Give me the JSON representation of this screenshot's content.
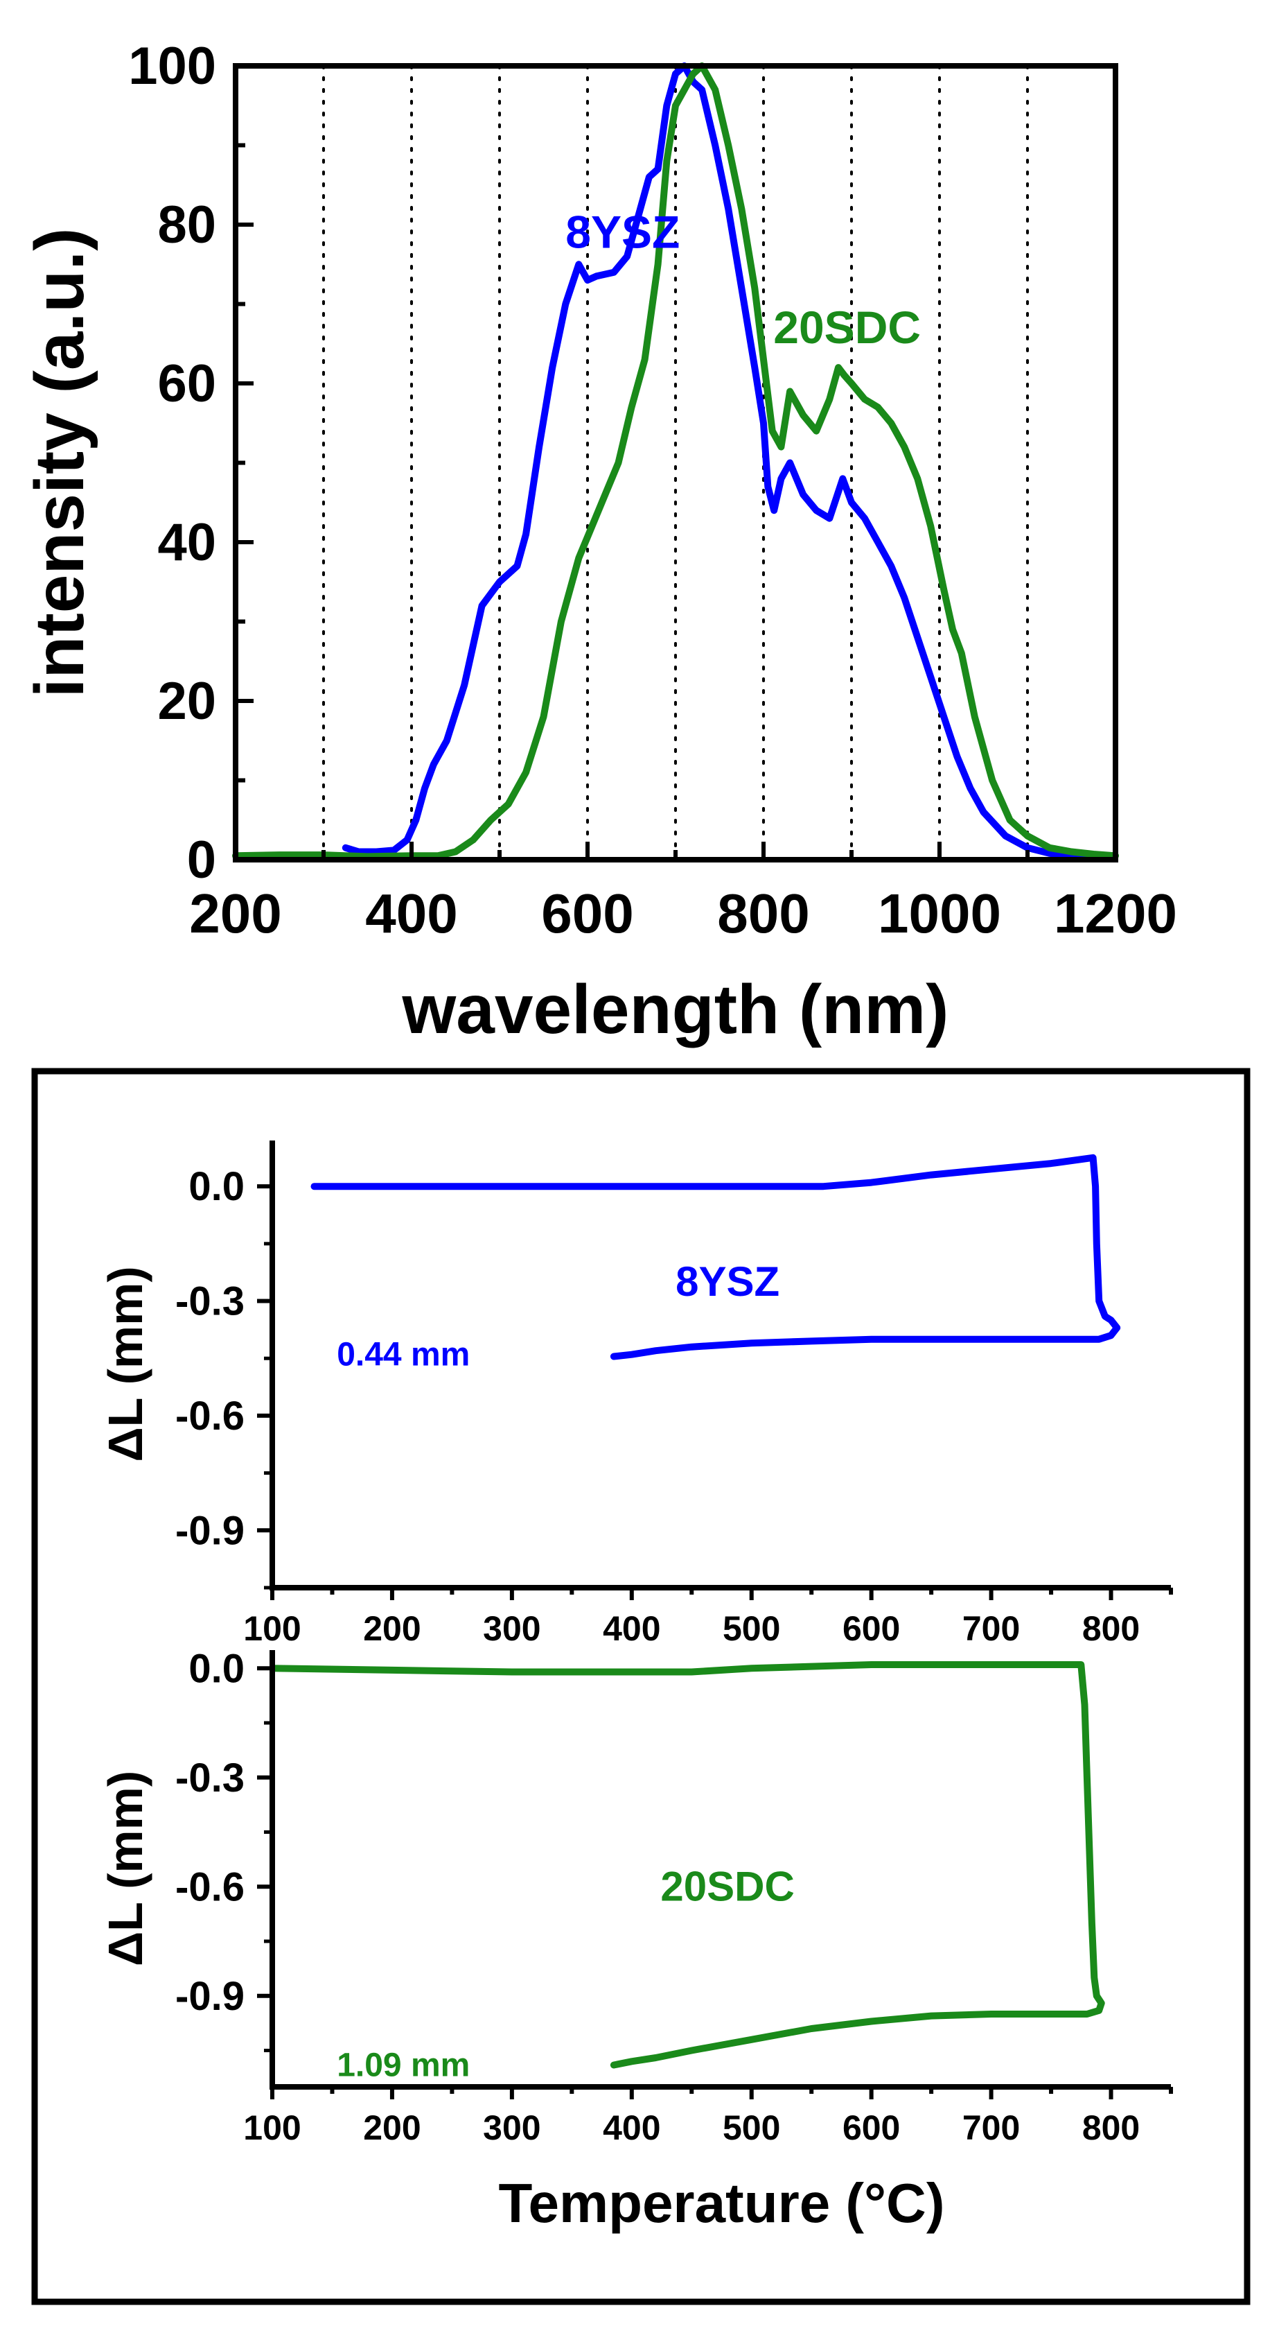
{
  "chart_data": [
    {
      "type": "line",
      "title": "",
      "xlabel": "wavelength (nm)",
      "ylabel": "intensity (a.u.)",
      "xlim": [
        200,
        1200
      ],
      "ylim": [
        0,
        100
      ],
      "xticks": [
        200,
        400,
        600,
        800,
        1000,
        1200
      ],
      "yticks": [
        0,
        20,
        40,
        60,
        80,
        100
      ],
      "vertical_dotted_gridlines": [
        300,
        400,
        500,
        600,
        700,
        800,
        900,
        1000,
        1100
      ],
      "series": [
        {
          "name": "8YSZ",
          "color": "#0000ff",
          "x": [
            325,
            340,
            360,
            380,
            395,
            405,
            415,
            425,
            440,
            460,
            480,
            500,
            520,
            530,
            545,
            560,
            575,
            590,
            600,
            610,
            630,
            645,
            660,
            670,
            680,
            690,
            700,
            710,
            720,
            730,
            745,
            760,
            775,
            790,
            800,
            805,
            812,
            820,
            830,
            845,
            860,
            875,
            890,
            900,
            915,
            930,
            945,
            960,
            975,
            990,
            1005,
            1020,
            1035,
            1050,
            1075,
            1100,
            1125,
            1150,
            1175
          ],
          "y": [
            1.5,
            1.0,
            1.0,
            1.2,
            2.5,
            5.0,
            9.0,
            12.0,
            15.0,
            22.0,
            32.0,
            35.0,
            37.0,
            41.0,
            52.0,
            62.0,
            70.0,
            75.0,
            73.0,
            73.5,
            74.0,
            76.0,
            82.0,
            86.0,
            87.0,
            95.0,
            99.0,
            100.0,
            98.0,
            97.0,
            90.0,
            82.0,
            72.0,
            62.0,
            55.0,
            47.0,
            44.0,
            48.0,
            50.0,
            46.0,
            44.0,
            43.0,
            48.0,
            45.0,
            43.0,
            40.0,
            37.0,
            33.0,
            28.0,
            23.0,
            18.0,
            13.0,
            9.0,
            6.0,
            3.0,
            1.5,
            0.8,
            0.5,
            0.5
          ]
        },
        {
          "name": "20SDC",
          "color": "#1a8a1a",
          "x": [
            200,
            250,
            300,
            350,
            400,
            430,
            450,
            470,
            490,
            510,
            530,
            550,
            570,
            590,
            605,
            620,
            635,
            650,
            665,
            680,
            690,
            700,
            710,
            720,
            730,
            745,
            760,
            775,
            790,
            800,
            810,
            820,
            830,
            845,
            860,
            875,
            885,
            892,
            900,
            915,
            930,
            945,
            960,
            975,
            990,
            1005,
            1015,
            1025,
            1040,
            1060,
            1080,
            1100,
            1125,
            1150,
            1175,
            1200
          ],
          "y": [
            0.5,
            0.6,
            0.6,
            0.4,
            0.5,
            0.5,
            1.0,
            2.5,
            5.0,
            7.0,
            11.0,
            18.0,
            30.0,
            38.0,
            42.0,
            46.0,
            50.0,
            57.0,
            63.0,
            75.0,
            88.0,
            95.0,
            97.0,
            99.0,
            100.0,
            97.0,
            90.0,
            82.0,
            72.0,
            63.0,
            54.0,
            52.0,
            59.0,
            56.0,
            54.0,
            58.0,
            62.0,
            61.0,
            60.0,
            58.0,
            57.0,
            55.0,
            52.0,
            48.0,
            42.0,
            34.0,
            29.0,
            26.0,
            18.0,
            10.0,
            5.0,
            3.0,
            1.5,
            1.0,
            0.7,
            0.5
          ]
        }
      ],
      "annotations": [
        {
          "text": "8YSZ",
          "x": 640,
          "y": 79,
          "color": "#0000ff"
        },
        {
          "text": "20SDC",
          "x": 895,
          "y": 67,
          "color": "#1a8a1a"
        }
      ]
    },
    {
      "type": "line",
      "title": "",
      "xlabel": "",
      "ylabel": "ΔL (mm)",
      "xlim": [
        100,
        850
      ],
      "ylim": [
        -1.05,
        0.12
      ],
      "xticks": [
        100,
        200,
        300,
        400,
        500,
        600,
        700,
        800
      ],
      "yticks": [
        0.0,
        -0.3,
        -0.6,
        -0.9
      ],
      "ytick_labels": [
        "0.0",
        "-0.3",
        "-0.6",
        "-0.9"
      ],
      "series": [
        {
          "name": "8YSZ",
          "color": "#0000ff",
          "x": [
            135,
            300,
            450,
            560,
            600,
            650,
            700,
            750,
            785,
            787,
            788,
            790,
            795,
            800,
            805,
            800,
            790,
            770,
            740,
            700,
            650,
            600,
            550,
            500,
            450,
            420,
            400,
            385
          ],
          "y": [
            0.0,
            0.0,
            0.0,
            0.0,
            0.01,
            0.03,
            0.045,
            0.06,
            0.075,
            0.0,
            -0.15,
            -0.3,
            -0.34,
            -0.35,
            -0.37,
            -0.39,
            -0.4,
            -0.4,
            -0.4,
            -0.4,
            -0.4,
            -0.4,
            -0.405,
            -0.41,
            -0.42,
            -0.43,
            -0.44,
            -0.445
          ]
        }
      ],
      "annotations": [
        {
          "text": "8YSZ",
          "x": 480,
          "y": -0.25,
          "color": "#0000ff"
        },
        {
          "text": "0.44 mm",
          "x": 265,
          "y": -0.44,
          "color": "#0000ff"
        }
      ]
    },
    {
      "type": "line",
      "title": "",
      "xlabel": "Temperature (°C)",
      "ylabel": "ΔL (mm)",
      "xlim": [
        100,
        850
      ],
      "ylim": [
        -1.15,
        0.05
      ],
      "xticks": [
        100,
        200,
        300,
        400,
        500,
        600,
        700,
        800
      ],
      "yticks": [
        0.0,
        -0.3,
        -0.6,
        -0.9
      ],
      "ytick_labels": [
        "0.0",
        "-0.3",
        "-0.6",
        "-0.9"
      ],
      "series": [
        {
          "name": "20SDC",
          "color": "#1a8a1a",
          "x": [
            100,
            200,
            300,
            400,
            450,
            500,
            550,
            600,
            650,
            700,
            750,
            775,
            778,
            780,
            782,
            784,
            786,
            788,
            792,
            790,
            780,
            760,
            730,
            700,
            650,
            600,
            550,
            500,
            450,
            420,
            400,
            385
          ],
          "y": [
            0.0,
            -0.005,
            -0.01,
            -0.01,
            -0.01,
            0.0,
            0.005,
            0.01,
            0.01,
            0.01,
            0.01,
            0.01,
            -0.1,
            -0.3,
            -0.5,
            -0.7,
            -0.85,
            -0.9,
            -0.92,
            -0.94,
            -0.95,
            -0.95,
            -0.95,
            -0.95,
            -0.955,
            -0.97,
            -0.99,
            -1.02,
            -1.05,
            -1.07,
            -1.08,
            -1.09
          ]
        }
      ],
      "annotations": [
        {
          "text": "20SDC",
          "x": 480,
          "y": -0.6,
          "color": "#1a8a1a"
        },
        {
          "text": "1.09 mm",
          "x": 265,
          "y": -1.09,
          "color": "#1a8a1a"
        }
      ]
    }
  ]
}
